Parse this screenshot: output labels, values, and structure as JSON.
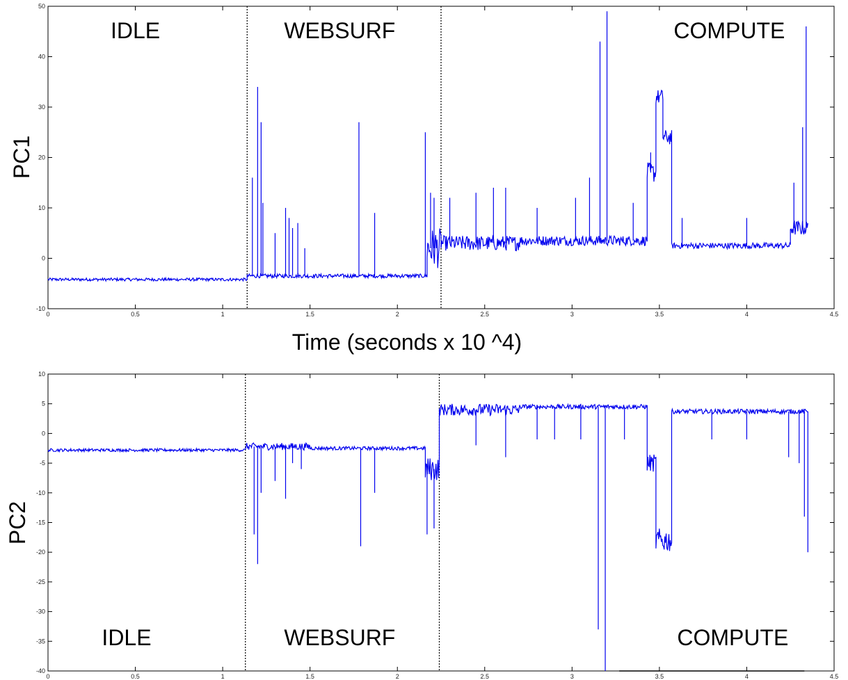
{
  "chart_data": [
    {
      "type": "line",
      "panel": "top",
      "ylabel": "PC1",
      "xlabel": "Time (seconds x 10 ^4)",
      "xlim": [
        0,
        4.5
      ],
      "ylim": [
        -10,
        50
      ],
      "x_ticks": [
        0,
        0.5,
        1,
        1.5,
        2,
        2.5,
        3,
        3.5,
        4,
        4.5
      ],
      "y_ticks": [
        -10,
        0,
        10,
        20,
        30,
        40,
        50
      ],
      "x_tick_labels": [
        "0",
        "0.5",
        "1",
        "1.5",
        "2",
        "2.5",
        "3",
        "3.5",
        "4",
        "4.5"
      ],
      "y_tick_labels": [
        "-10",
        "0",
        "10",
        "20",
        "30",
        "40",
        "50"
      ],
      "regions": [
        {
          "label": "IDLE",
          "x": 0.5
        },
        {
          "label": "WEBSURF",
          "x": 1.67
        },
        {
          "label": "COMPUTE",
          "x": 3.9
        }
      ],
      "boundaries": [
        1.14,
        2.25
      ],
      "series": [
        {
          "color": "#0000ee",
          "segments": [
            {
              "x0": 0,
              "x1": 1.14,
              "level": -4.2,
              "noise": 0.3
            },
            {
              "x0": 1.14,
              "x1": 2.17,
              "level": -3.5,
              "noise": 0.4
            },
            {
              "x0": 2.17,
              "x1": 2.25,
              "level": 2,
              "noise": 4
            },
            {
              "x0": 2.25,
              "x1": 2.7,
              "level": 3,
              "noise": 1.5
            },
            {
              "x0": 2.7,
              "x1": 3.43,
              "level": 3.5,
              "noise": 1
            },
            {
              "x0": 3.43,
              "x1": 3.48,
              "level": 17,
              "noise": 2
            },
            {
              "x0": 3.48,
              "x1": 3.52,
              "level": 32,
              "noise": 1.5
            },
            {
              "x0": 3.52,
              "x1": 3.57,
              "level": 24,
              "noise": 1.5
            },
            {
              "x0": 3.57,
              "x1": 4.25,
              "level": 2.5,
              "noise": 0.6
            },
            {
              "x0": 4.25,
              "x1": 4.35,
              "level": 6,
              "noise": 1.5
            }
          ],
          "spikes": [
            [
              1.17,
              16
            ],
            [
              1.2,
              34
            ],
            [
              1.22,
              27
            ],
            [
              1.23,
              11
            ],
            [
              1.3,
              5
            ],
            [
              1.36,
              10
            ],
            [
              1.38,
              8
            ],
            [
              1.4,
              6
            ],
            [
              1.43,
              7
            ],
            [
              1.47,
              2
            ],
            [
              1.78,
              27
            ],
            [
              1.87,
              9
            ],
            [
              2.16,
              25
            ],
            [
              2.19,
              13
            ],
            [
              2.21,
              12
            ],
            [
              2.3,
              12
            ],
            [
              2.45,
              13
            ],
            [
              2.55,
              14
            ],
            [
              2.62,
              14
            ],
            [
              2.8,
              10
            ],
            [
              3.02,
              12
            ],
            [
              3.1,
              16
            ],
            [
              3.16,
              43
            ],
            [
              3.2,
              49
            ],
            [
              3.35,
              11
            ],
            [
              3.45,
              21
            ],
            [
              3.63,
              8
            ],
            [
              4.0,
              8
            ],
            [
              4.27,
              15
            ],
            [
              4.32,
              26
            ],
            [
              4.34,
              46
            ]
          ]
        }
      ]
    },
    {
      "type": "line",
      "panel": "bottom",
      "ylabel": "PC2",
      "xlabel": "",
      "xlim": [
        0,
        4.5
      ],
      "ylim": [
        -40,
        10
      ],
      "x_ticks": [
        0,
        0.5,
        1,
        1.5,
        2,
        2.5,
        3,
        3.5,
        4,
        4.5
      ],
      "y_ticks": [
        -40,
        -35,
        -30,
        -25,
        -20,
        -15,
        -10,
        -5,
        0,
        5,
        10
      ],
      "x_tick_labels": [
        "0",
        "0.5",
        "1",
        "1.5",
        "2",
        "2.5",
        "3",
        "3.5",
        "4",
        "4.5"
      ],
      "y_tick_labels": [
        "-40",
        "-35",
        "-30",
        "-25",
        "-20",
        "-15",
        "-10",
        "-5",
        "0",
        "5",
        "10"
      ],
      "regions": [
        {
          "label": "IDLE",
          "x": 0.45
        },
        {
          "label": "WEBSURF",
          "x": 1.67
        },
        {
          "label": "COMPUTE",
          "x": 3.92
        }
      ],
      "boundaries": [
        1.13,
        2.24
      ],
      "series": [
        {
          "color": "#0000ee",
          "segments": [
            {
              "x0": 0,
              "x1": 1.13,
              "level": -2.8,
              "noise": 0.25
            },
            {
              "x0": 1.13,
              "x1": 1.5,
              "level": -2.2,
              "noise": 0.6
            },
            {
              "x0": 1.5,
              "x1": 2.16,
              "level": -2.5,
              "noise": 0.3
            },
            {
              "x0": 2.16,
              "x1": 2.24,
              "level": -6,
              "noise": 2
            },
            {
              "x0": 2.24,
              "x1": 2.7,
              "level": 4,
              "noise": 1
            },
            {
              "x0": 2.7,
              "x1": 3.43,
              "level": 4.5,
              "noise": 0.4
            },
            {
              "x0": 3.43,
              "x1": 3.48,
              "level": -5,
              "noise": 1.5
            },
            {
              "x0": 3.48,
              "x1": 3.57,
              "level": -18,
              "noise": 2
            },
            {
              "x0": 3.57,
              "x1": 4.35,
              "level": 3.7,
              "noise": 0.4
            }
          ],
          "spikes": [
            [
              1.18,
              -17
            ],
            [
              1.2,
              -22
            ],
            [
              1.22,
              -10
            ],
            [
              1.3,
              -8
            ],
            [
              1.36,
              -11
            ],
            [
              1.4,
              -5
            ],
            [
              1.45,
              -6
            ],
            [
              1.79,
              -19
            ],
            [
              1.87,
              -10
            ],
            [
              2.17,
              -17
            ],
            [
              2.21,
              -16
            ],
            [
              2.45,
              -2
            ],
            [
              2.62,
              -4
            ],
            [
              2.8,
              -1
            ],
            [
              2.9,
              -1
            ],
            [
              3.05,
              -1
            ],
            [
              3.15,
              -33
            ],
            [
              3.19,
              -40
            ],
            [
              3.3,
              -1
            ],
            [
              3.8,
              -1
            ],
            [
              4.0,
              -1
            ],
            [
              4.24,
              -4
            ],
            [
              4.3,
              -5
            ],
            [
              4.33,
              -14
            ],
            [
              4.35,
              -20
            ]
          ]
        }
      ]
    }
  ]
}
